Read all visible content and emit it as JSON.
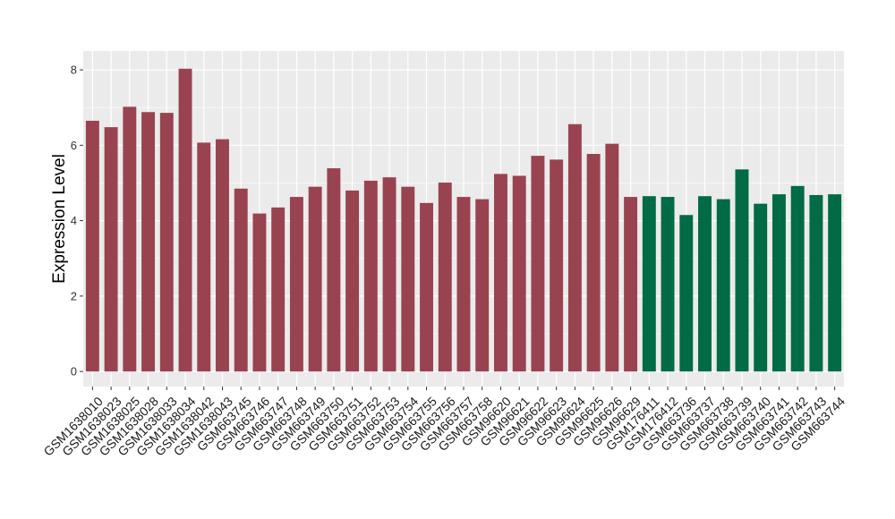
{
  "chart_data": {
    "type": "bar",
    "title": "",
    "xlabel": "",
    "ylabel": "Expression Level",
    "ylim": [
      -0.4,
      8.5
    ],
    "yticks": [
      0,
      2,
      4,
      6,
      8
    ],
    "grid": true,
    "categories": [
      "GSM1638010",
      "GSM1638023",
      "GSM1638025",
      "GSM1638028",
      "GSM1638033",
      "GSM1638034",
      "GSM1638042",
      "GSM1638043",
      "GSM663745",
      "GSM663746",
      "GSM663747",
      "GSM663748",
      "GSM663749",
      "GSM663750",
      "GSM663751",
      "GSM663752",
      "GSM663753",
      "GSM663754",
      "GSM663755",
      "GSM663756",
      "GSM663757",
      "GSM663758",
      "GSM96620",
      "GSM96621",
      "GSM96622",
      "GSM96623",
      "GSM96624",
      "GSM96625",
      "GSM96626",
      "GSM96629",
      "GSM176411",
      "GSM176412",
      "GSM663736",
      "GSM663737",
      "GSM663738",
      "GSM663739",
      "GSM663740",
      "GSM663741",
      "GSM663742",
      "GSM663743",
      "GSM663744"
    ],
    "values": [
      6.65,
      6.48,
      7.02,
      6.88,
      6.86,
      8.03,
      6.07,
      6.16,
      4.85,
      4.19,
      4.35,
      4.63,
      4.9,
      5.39,
      4.8,
      5.06,
      5.15,
      4.9,
      4.47,
      5.01,
      4.63,
      4.57,
      5.24,
      5.19,
      5.72,
      5.62,
      6.56,
      5.77,
      6.04,
      4.63,
      4.65,
      4.63,
      4.15,
      4.65,
      4.57,
      5.36,
      4.45,
      4.7,
      4.92,
      4.68,
      4.7
    ],
    "bar_colors": [
      "#9a4350",
      "#9a4350",
      "#9a4350",
      "#9a4350",
      "#9a4350",
      "#9a4350",
      "#9a4350",
      "#9a4350",
      "#9a4350",
      "#9a4350",
      "#9a4350",
      "#9a4350",
      "#9a4350",
      "#9a4350",
      "#9a4350",
      "#9a4350",
      "#9a4350",
      "#9a4350",
      "#9a4350",
      "#9a4350",
      "#9a4350",
      "#9a4350",
      "#9a4350",
      "#9a4350",
      "#9a4350",
      "#9a4350",
      "#9a4350",
      "#9a4350",
      "#9a4350",
      "#9a4350",
      "#006b45",
      "#006b45",
      "#006b45",
      "#006b45",
      "#006b45",
      "#006b45",
      "#006b45",
      "#006b45",
      "#006b45",
      "#006b45",
      "#006b45"
    ],
    "panel_background": "#ebebeb",
    "gridline_color": "#ffffff"
  }
}
